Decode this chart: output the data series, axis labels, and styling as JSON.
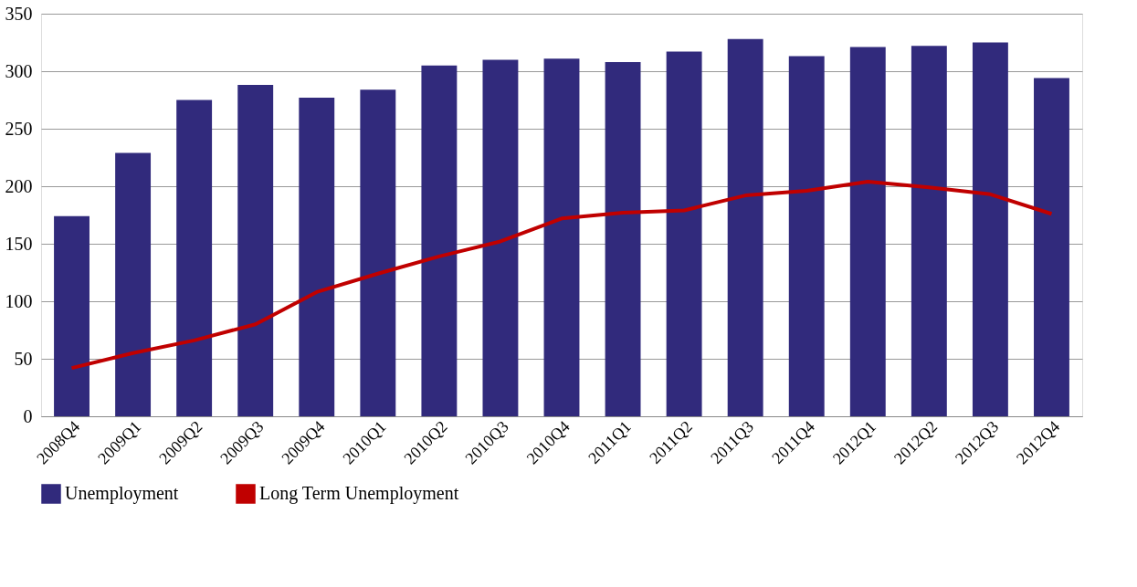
{
  "chart_data": {
    "type": "bar",
    "categories": [
      "2008Q4",
      "2009Q1",
      "2009Q2",
      "2009Q3",
      "2009Q4",
      "2010Q1",
      "2010Q2",
      "2010Q3",
      "2010Q4",
      "2011Q1",
      "2011Q2",
      "2011Q3",
      "2011Q4",
      "2012Q1",
      "2012Q2",
      "2012Q3",
      "2012Q4"
    ],
    "series": [
      {
        "name": "Unemployment",
        "color": "#312a7c",
        "values": [
          174,
          229,
          275,
          288,
          277,
          284,
          305,
          310,
          311,
          308,
          317,
          328,
          313,
          321,
          322,
          325,
          294
        ]
      },
      {
        "name": "Long Term Unemployment",
        "type": "line",
        "color": "#c00000",
        "values": [
          42,
          55,
          66,
          80,
          108,
          124,
          139,
          152,
          172,
          177,
          179,
          192,
          196,
          204,
          199,
          193,
          176
        ]
      }
    ],
    "ylim": [
      0,
      350
    ],
    "yticks": [
      0,
      50,
      100,
      150,
      200,
      250,
      300,
      350
    ],
    "grid": "y",
    "legend": "bottom",
    "line_style": "solid",
    "marker": "none"
  }
}
